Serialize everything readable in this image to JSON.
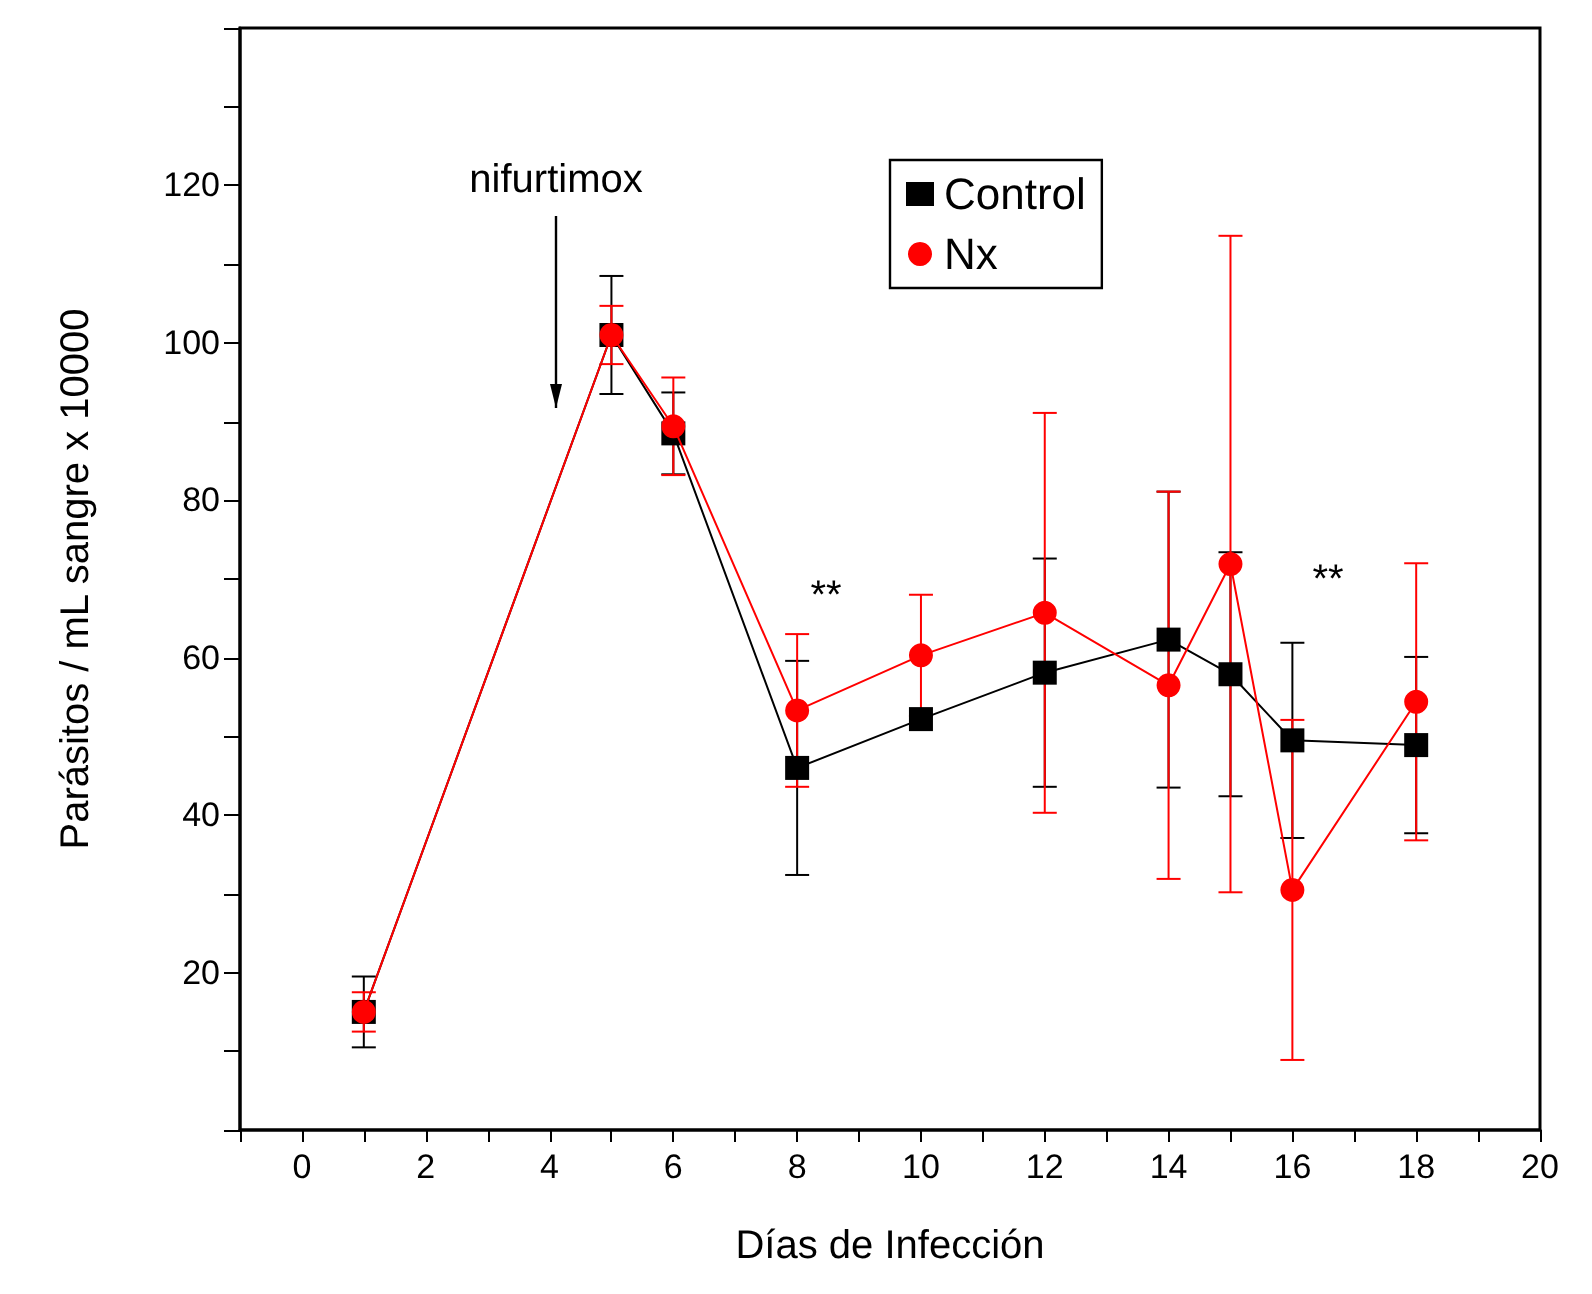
{
  "chart_data": {
    "type": "line",
    "xlabel": "Días de Infección",
    "ylabel": "Parásitos / mL sangre x 10000",
    "x": [
      1,
      5,
      6,
      8,
      10,
      12,
      14,
      15,
      16,
      18
    ],
    "series": [
      {
        "name": "Control",
        "color": "#000000",
        "marker": "square",
        "values": [
          15,
          101,
          88.5,
          46,
          52.2,
          58.1,
          62.3,
          57.9,
          49.5,
          48.9
        ],
        "errors": [
          4.5,
          7.5,
          5.2,
          13.6,
          null,
          14.5,
          18.8,
          15.5,
          12.4,
          11.2
        ]
      },
      {
        "name": "Nx",
        "color": "#ff0000",
        "marker": "circle",
        "values": [
          15,
          101,
          89.4,
          53.3,
          60.3,
          65.7,
          56.5,
          71.9,
          30.5,
          54.4
        ],
        "errors": [
          2.5,
          3.7,
          6.2,
          9.7,
          7.7,
          25.4,
          24.6,
          41.7,
          21.6,
          17.6
        ]
      }
    ],
    "xlim": [
      -1,
      20
    ],
    "xticks": [
      {
        "value": -1,
        "label": null
      },
      0,
      {
        "value": 1,
        "label": null
      },
      2,
      {
        "value": 3,
        "label": null
      },
      4,
      {
        "value": 5,
        "label": null
      },
      6,
      {
        "value": 7,
        "label": null
      },
      8,
      {
        "value": 9,
        "label": null
      },
      10,
      {
        "value": 11,
        "label": null
      },
      12,
      {
        "value": 13,
        "label": null
      },
      14,
      {
        "value": 15,
        "label": null
      },
      16,
      {
        "value": 17,
        "label": null
      },
      18,
      {
        "value": 19,
        "label": null
      },
      20
    ],
    "ylim": [
      0,
      140
    ],
    "yticks": [
      {
        "value": 0,
        "label": null
      },
      {
        "value": 10,
        "label": null
      },
      20,
      {
        "value": 30,
        "label": null
      },
      40,
      {
        "value": 50,
        "label": null
      },
      60,
      {
        "value": 70,
        "label": null
      },
      80,
      {
        "value": 90,
        "label": null
      },
      100,
      {
        "value": 110,
        "label": null
      },
      120,
      {
        "value": 130,
        "label": null
      },
      {
        "value": 140,
        "label": null
      }
    ],
    "line_style": "solid",
    "legend": "top right",
    "annotations": [
      "nifurtimox",
      "**",
      "**"
    ]
  }
}
